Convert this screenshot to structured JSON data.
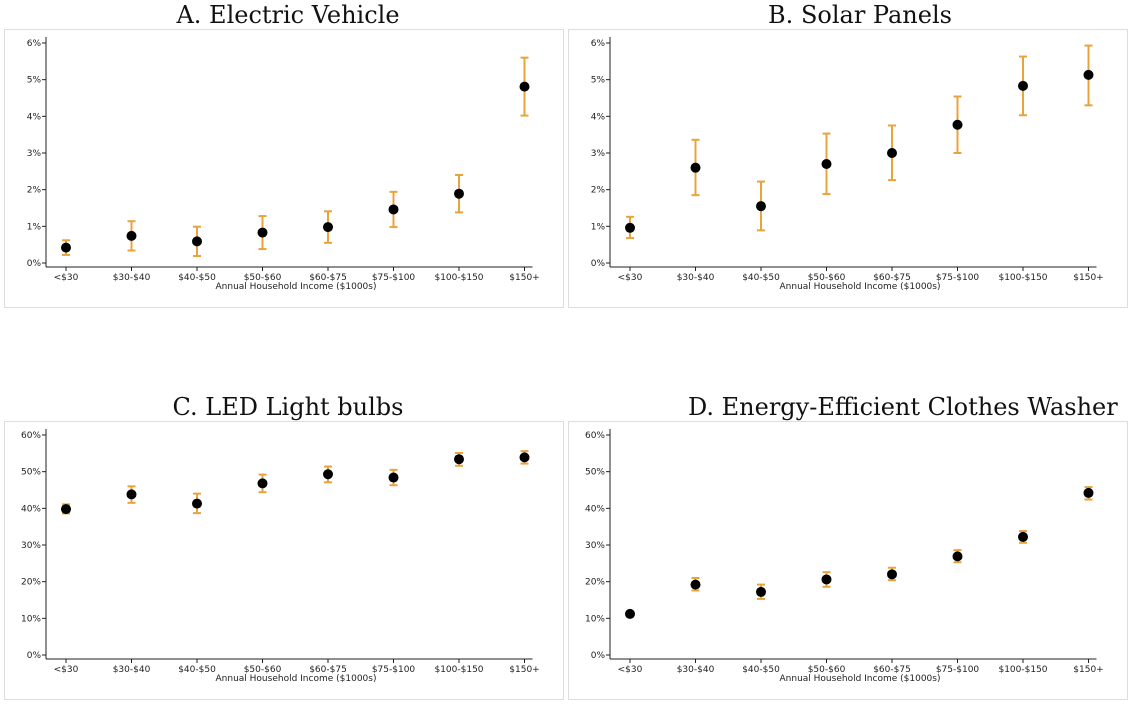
{
  "colors": {
    "point": "#000000",
    "error_bar": "#E8A33D",
    "axis": "#222222",
    "frame": "#dddddd"
  },
  "chart_data": [
    {
      "type": "scatter",
      "title": "A. Electric Vehicle",
      "xlabel": "Annual Household Income ($1000s)",
      "ylabel": "",
      "categories": [
        "<$30",
        "$30-$40",
        "$40-$50",
        "$50-$60",
        "$60-$75",
        "$75-$100",
        "$100-$150",
        "$150+"
      ],
      "values": [
        0.42,
        0.74,
        0.59,
        0.83,
        0.98,
        1.46,
        1.89,
        4.81
      ],
      "ci_low": [
        0.22,
        0.34,
        0.19,
        0.38,
        0.55,
        0.98,
        1.38,
        4.02
      ],
      "ci_high": [
        0.62,
        1.14,
        0.99,
        1.28,
        1.41,
        1.94,
        2.4,
        5.6
      ],
      "y_ticks": [
        "0%",
        "1%",
        "2%",
        "3%",
        "4%",
        "5%",
        "6%"
      ],
      "ylim": [
        0,
        6
      ],
      "grid": false,
      "legend": "none"
    },
    {
      "type": "scatter",
      "title": "B. Solar Panels",
      "xlabel": "Annual Household Income ($1000s)",
      "ylabel": "",
      "categories": [
        "<$30",
        "$30-$40",
        "$40-$50",
        "$50-$60",
        "$60-$75",
        "$75-$100",
        "$100-$150",
        "$150+"
      ],
      "values": [
        0.96,
        2.6,
        1.55,
        2.7,
        3.0,
        3.77,
        4.83,
        5.13
      ],
      "ci_low": [
        0.68,
        1.85,
        0.89,
        1.88,
        2.26,
        3.0,
        4.03,
        4.3
      ],
      "ci_high": [
        1.26,
        3.36,
        2.22,
        3.53,
        3.75,
        4.54,
        5.63,
        5.93
      ],
      "y_ticks": [
        "0%",
        "1%",
        "2%",
        "3%",
        "4%",
        "5%",
        "6%"
      ],
      "ylim": [
        0,
        6
      ],
      "grid": false,
      "legend": "none"
    },
    {
      "type": "scatter",
      "title": "C. LED Light bulbs",
      "xlabel": "Annual Household Income ($1000s)",
      "ylabel": "",
      "categories": [
        "<$30",
        "$30-$40",
        "$40-$50",
        "$50-$60",
        "$60-$75",
        "$75-$100",
        "$100-$150",
        "$150+"
      ],
      "values": [
        39.8,
        43.8,
        41.3,
        46.8,
        49.3,
        48.4,
        53.4,
        53.9
      ],
      "ci_low": [
        38.6,
        41.5,
        38.7,
        44.4,
        47.1,
        46.3,
        51.6,
        52.2
      ],
      "ci_high": [
        41.1,
        46.0,
        44.0,
        49.2,
        51.4,
        50.5,
        55.1,
        55.6
      ],
      "y_ticks": [
        "0%",
        "10%",
        "20%",
        "30%",
        "40%",
        "50%",
        "60%"
      ],
      "ylim": [
        0,
        60
      ],
      "grid": false,
      "legend": "none"
    },
    {
      "type": "scatter",
      "title": "D. Energy-Efficient Clothes Washer",
      "xlabel": "Annual Household Income ($1000s)",
      "ylabel": "",
      "categories": [
        "<$30",
        "$30-$40",
        "$40-$50",
        "$50-$60",
        "$60-$75",
        "$75-$100",
        "$100-$150",
        "$150+"
      ],
      "values": [
        11.2,
        19.2,
        17.2,
        20.6,
        22.0,
        26.9,
        32.2,
        44.2
      ],
      "ci_low": [
        10.6,
        17.6,
        15.3,
        18.6,
        20.4,
        25.3,
        30.6,
        42.4
      ],
      "ci_high": [
        11.8,
        21.0,
        19.2,
        22.6,
        23.8,
        28.6,
        33.8,
        45.8
      ],
      "y_ticks": [
        "0%",
        "10%",
        "20%",
        "30%",
        "40%",
        "50%",
        "60%"
      ],
      "ylim": [
        0,
        60
      ],
      "grid": false,
      "legend": "none"
    }
  ]
}
